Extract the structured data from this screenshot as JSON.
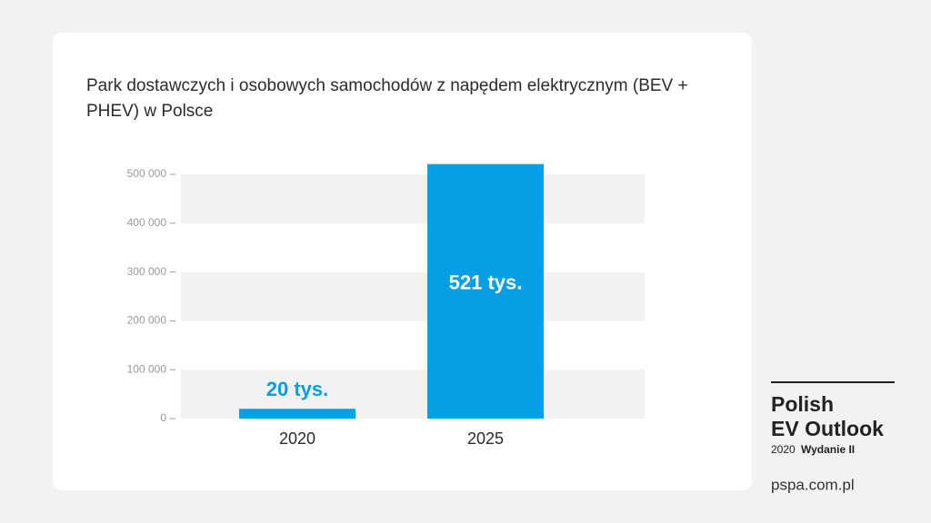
{
  "chart_data": {
    "type": "bar",
    "title": "Park dostawczych i osobowych samochodów z napędem elektrycznym (BEV + PHEV) w Polsce",
    "categories": [
      "2020",
      "2025"
    ],
    "values": [
      20000,
      521000
    ],
    "value_labels": [
      "20 tys.",
      "521 tys."
    ],
    "color": "#079fe3",
    "ylim": [
      0,
      500000
    ],
    "yticks": [
      0,
      {
        "value": 100000,
        "label": "100 000"
      },
      {
        "value": 200000,
        "label": "200 000"
      },
      {
        "value": 300000,
        "label": "300 000"
      },
      {
        "value": 400000,
        "label": "400 000"
      },
      {
        "value": 500000,
        "label": "500 000"
      }
    ],
    "grid": true
  },
  "branding": {
    "line1": "Polish",
    "line2": "EV Outlook",
    "edition_year": "2020",
    "edition": "Wydanie II",
    "url": "pspa.com.pl"
  }
}
